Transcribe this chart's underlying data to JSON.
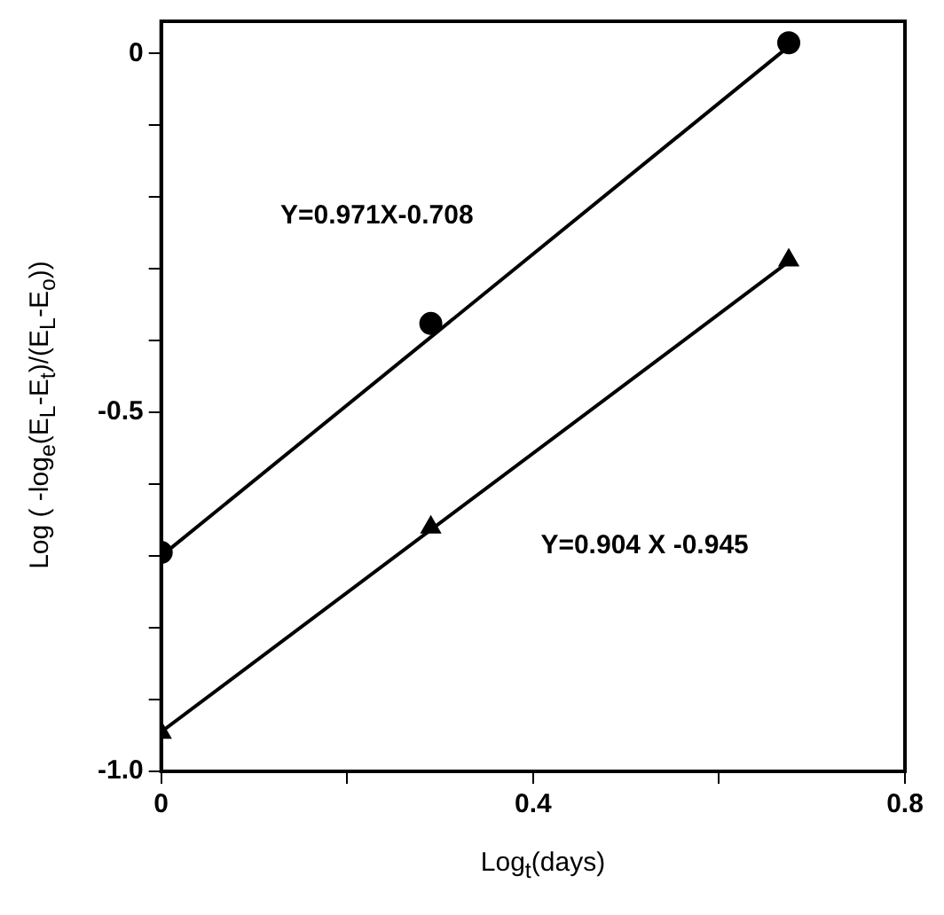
{
  "chart_data": {
    "type": "scatter",
    "xlabel": "Log$_{t}$(days)",
    "ylabel": "Log ( -log$_{e}$(E$_{L}$-E$_{t}$)/(E$_{L}$-E$_{o}$))",
    "series": [
      {
        "color": "#000000",
        "marker": "circle",
        "x": [
          0,
          0.29,
          0.675
        ],
        "values": [
          -0.695,
          -0.376,
          0.015
        ]
      },
      {
        "color": "#000000",
        "marker": "triangle",
        "x": [
          0,
          0.29,
          0.675
        ],
        "values": [
          -0.946,
          -0.66,
          -0.288
        ]
      },
      {
        "type": "line",
        "color": "#000000",
        "marker": "none",
        "x": [
          0,
          0.675
        ],
        "values": [
          -0.7,
          0.01
        ]
      },
      {
        "type": "line",
        "color": "#000000",
        "marker": "none",
        "x": [
          0,
          0.675
        ],
        "values": [
          -0.945,
          -0.29
        ]
      }
    ],
    "xlim": [
      0,
      0.8
    ],
    "ylim": [
      -1,
      0.045
    ],
    "xticks": [
      0,
      {
        "value": 0.2,
        "label": null
      },
      0.4,
      {
        "value": 0.6,
        "label": null
      },
      0.8
    ],
    "yticks": [
      {
        "value": -1,
        "label": "-1.0"
      },
      {
        "value": -0.9,
        "label": null
      },
      {
        "value": -0.8,
        "label": null
      },
      {
        "value": -0.7,
        "label": null
      },
      {
        "value": -0.6,
        "label": null
      },
      -0.5,
      {
        "value": -0.4,
        "label": null
      },
      {
        "value": -0.3,
        "label": null
      },
      {
        "value": -0.2,
        "label": null
      },
      {
        "value": -0.1,
        "label": null
      },
      0
    ],
    "annotations": [
      "Y=0.971X-0.708",
      "Y=0.904 X -0.945"
    ],
    "grid": false,
    "legend": false,
    "line_style": "solid"
  }
}
